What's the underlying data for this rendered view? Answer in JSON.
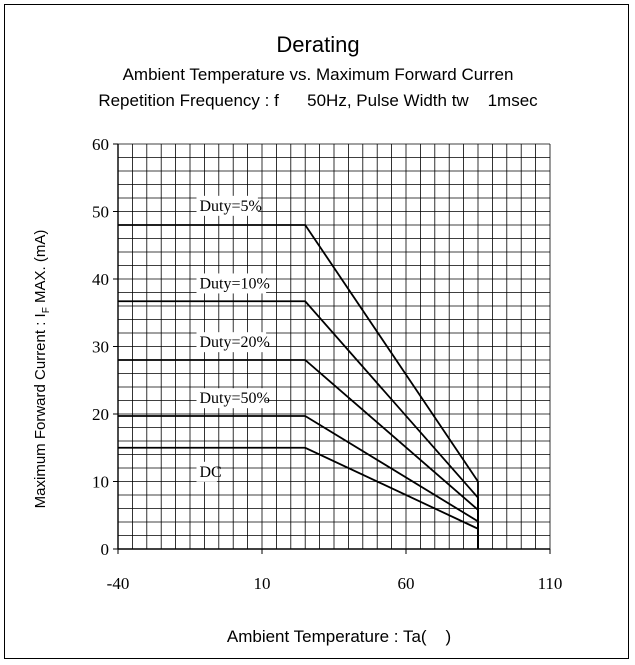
{
  "chart_data": {
    "type": "line",
    "title": "Derating",
    "subtitle_1": "Ambient Temperature vs. Maximum Forward Curren",
    "subtitle_2": "Repetition Frequency : f      50Hz, Pulse Width tw    1msec",
    "xlabel": "Ambient Temperature : Ta(    )",
    "ylabel": "Maximum Forward Current : I",
    "ylabel_sub": "F",
    "ylabel_tail": " MAX. (mA)",
    "xlim": [
      -40,
      110
    ],
    "ylim": [
      0,
      60
    ],
    "x_ticks": [
      "-40",
      "10",
      "60",
      "110"
    ],
    "y_ticks": [
      "0",
      "10",
      "20",
      "30",
      "40",
      "50",
      "60"
    ],
    "grid": true,
    "series": [
      {
        "name": "Duty=5%",
        "x": [
          -40,
          25,
          85,
          85
        ],
        "y": [
          48,
          48,
          10,
          0
        ]
      },
      {
        "name": "Duty=10%",
        "x": [
          -40,
          25,
          85,
          85
        ],
        "y": [
          36.7,
          36.7,
          7.6,
          0
        ]
      },
      {
        "name": "Duty=20%",
        "x": [
          -40,
          25,
          85,
          85
        ],
        "y": [
          28,
          28,
          5.8,
          0
        ]
      },
      {
        "name": "Duty=50%",
        "x": [
          -40,
          25,
          85,
          85
        ],
        "y": [
          19.7,
          19.7,
          4.1,
          0
        ]
      },
      {
        "name": "DC",
        "x": [
          -40,
          25,
          85,
          85
        ],
        "y": [
          15,
          15,
          3,
          0
        ]
      }
    ],
    "annotations": [
      {
        "text": "Duty=5%",
        "x": -11.7,
        "y": 50.1
      },
      {
        "text": "Duty=10%",
        "x": -11.7,
        "y": 38.6
      },
      {
        "text": "Duty=20%",
        "x": -11.7,
        "y": 29.9
      },
      {
        "text": "Duty=50%",
        "x": -11.7,
        "y": 21.6
      },
      {
        "text": "DC",
        "x": -11.7,
        "y": 10.7
      }
    ]
  }
}
